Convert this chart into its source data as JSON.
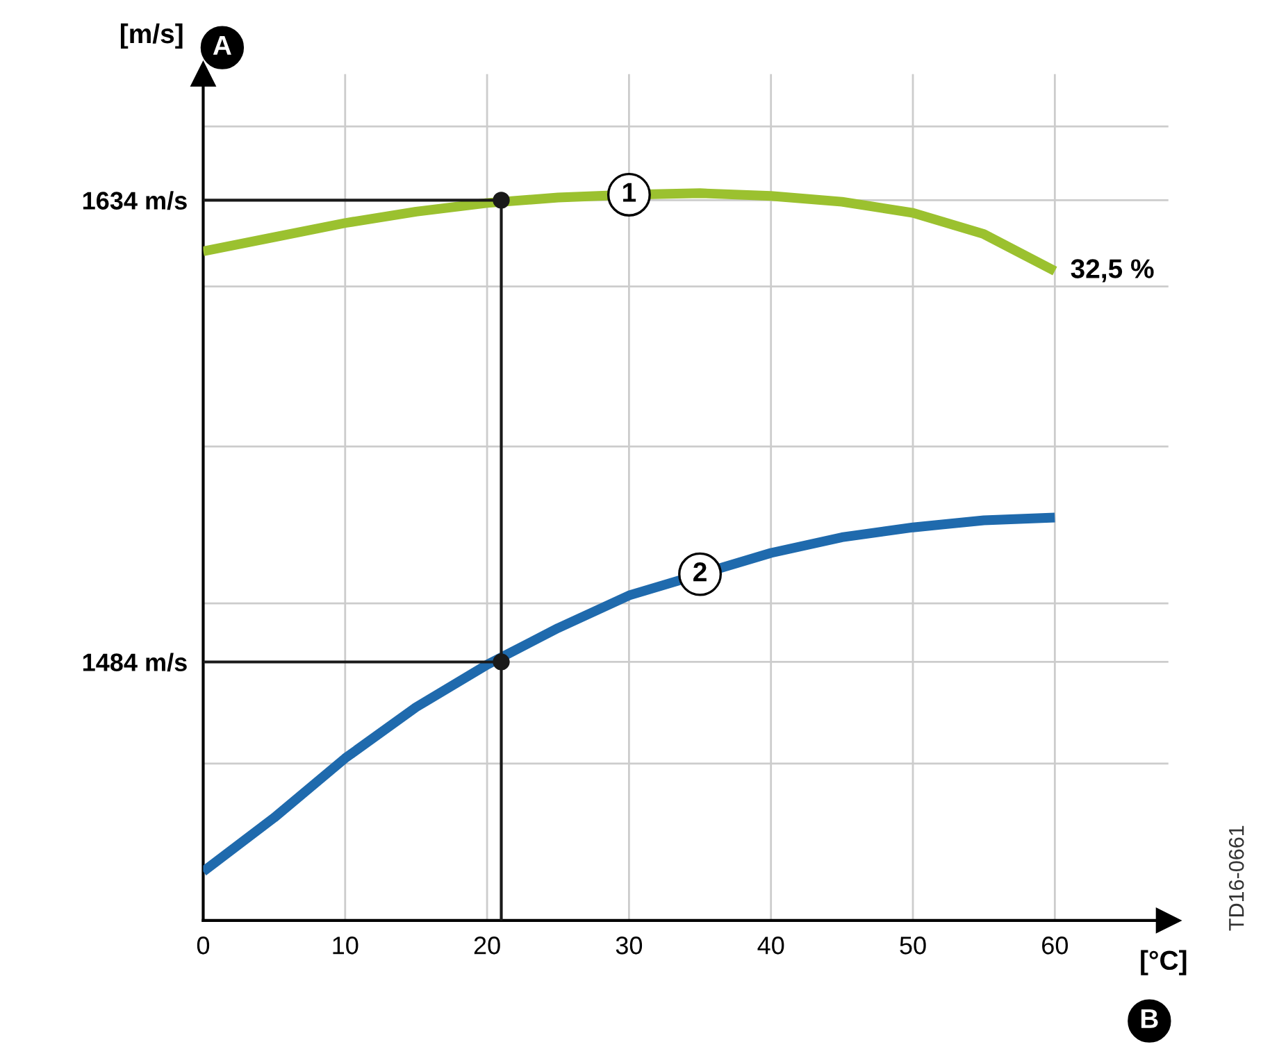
{
  "chart_data": {
    "type": "line",
    "xlabel": "[°C]",
    "ylabel": "[m/s]",
    "xlim": [
      0,
      68
    ],
    "ylim": [
      1400,
      1675
    ],
    "xticks": [
      0,
      10,
      20,
      30,
      40,
      50,
      60
    ],
    "yticks": [
      {
        "value": 1451,
        "label": null
      },
      {
        "value": 1484,
        "label": "1484 m/s"
      },
      {
        "value": 1503,
        "label": null
      },
      {
        "value": 1554,
        "label": null
      },
      {
        "value": 1606,
        "label": null
      },
      {
        "value": 1634,
        "label": "1634 m/s"
      },
      {
        "value": 1658,
        "label": null
      }
    ],
    "grid": true,
    "marker": "none",
    "line_style": "solid",
    "series": [
      {
        "name": "1",
        "color": "#9bc12f",
        "x": [
          0,
          5,
          10,
          15,
          20,
          25,
          30,
          35,
          40,
          45,
          50,
          55,
          60
        ],
        "values": [
          1617.4,
          1622.0,
          1626.6,
          1630.3,
          1633.1,
          1634.9,
          1635.8,
          1636.3,
          1635.4,
          1633.5,
          1629.9,
          1623.0,
          1611.0
        ]
      },
      {
        "name": "2",
        "color": "#1f6aad",
        "x": [
          0,
          5,
          10,
          15,
          20,
          25,
          30,
          35,
          40,
          45,
          50,
          55,
          60
        ],
        "values": [
          1415.9,
          1433.4,
          1452.7,
          1469.3,
          1483.1,
          1495.0,
          1505.6,
          1512.5,
          1519.4,
          1524.5,
          1527.7,
          1530.0,
          1530.9
        ]
      },
      {
        "type": "line",
        "color": "#1a1a1a",
        "x": [
          0,
          21,
          21
        ],
        "values": [
          1634,
          1634,
          1400
        ]
      },
      {
        "type": "line",
        "color": "#1a1a1a",
        "x": [
          0,
          21
        ],
        "values": [
          1484,
          1484
        ]
      },
      {
        "type": "scatter",
        "color": "#1a1a1a",
        "marker": "circle",
        "x": [
          21,
          21
        ],
        "values": [
          1634,
          1484
        ]
      }
    ],
    "annotations": [
      {
        "text": "32,5 %",
        "x": 60,
        "y": 1611.0
      },
      "A",
      "B",
      "TD16-0661"
    ]
  }
}
